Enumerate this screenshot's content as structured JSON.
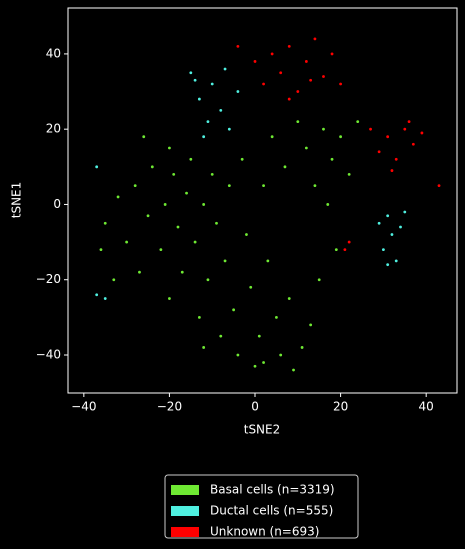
{
  "chart_data": {
    "type": "scatter",
    "x_label": "tSNE2",
    "y_label": "tSNE1",
    "xlim": [
      -43.7,
      47.2
    ],
    "ylim": [
      -50.1,
      52.2
    ],
    "xticks": [
      {
        "value": -40,
        "label": "−40"
      },
      {
        "value": -20,
        "label": "−20"
      },
      0,
      20,
      40
    ],
    "yticks": [
      {
        "value": -40,
        "label": "−40"
      },
      {
        "value": -20,
        "label": "−20"
      },
      0,
      20,
      40
    ],
    "legend": "below",
    "series": [
      {
        "name": "Basal cells (n=3319)",
        "color": "#6fe933",
        "x": [
          -35,
          -32,
          -30,
          -28,
          -27,
          -25,
          -24,
          -22,
          -21,
          -20,
          -19,
          -18,
          -17,
          -16,
          -15,
          -14,
          -13,
          -12,
          -11,
          -10,
          -9,
          -8,
          -7,
          -6,
          -5,
          -4,
          -3,
          -2,
          -1,
          0,
          1,
          2,
          3,
          4,
          5,
          6,
          7,
          8,
          9,
          10,
          11,
          12,
          13,
          14,
          15,
          16,
          17,
          18,
          19,
          20,
          22,
          24,
          -36,
          -33,
          -26,
          -20,
          -12,
          2
        ],
        "y": [
          -5,
          2,
          -10,
          5,
          -18,
          -3,
          10,
          -12,
          0,
          -25,
          8,
          -6,
          -18,
          3,
          12,
          -10,
          -30,
          0,
          -20,
          8,
          -5,
          -35,
          -15,
          5,
          -28,
          -40,
          12,
          -8,
          -22,
          -43,
          -35,
          5,
          -15,
          18,
          -30,
          -40,
          10,
          -25,
          -44,
          22,
          -38,
          15,
          -32,
          5,
          -20,
          20,
          0,
          12,
          -12,
          18,
          8,
          22,
          -12,
          -20,
          18,
          15,
          -38,
          -42
        ]
      },
      {
        "name": "Ductal cells (n=555)",
        "color": "#4ff0e0",
        "x": [
          -15,
          -13,
          -11,
          -10,
          -8,
          -7,
          -6,
          -12,
          -4,
          -14,
          29,
          30,
          31,
          32,
          33,
          34,
          31,
          35,
          -37,
          -35,
          -37
        ],
        "y": [
          35,
          28,
          22,
          32,
          25,
          36,
          20,
          18,
          30,
          33,
          -5,
          -12,
          -3,
          -8,
          -15,
          -6,
          -16,
          -2,
          -24,
          -25,
          10
        ]
      },
      {
        "name": "Unknown (n=693)",
        "color": "#ff0000",
        "x": [
          -4,
          0,
          2,
          4,
          6,
          8,
          10,
          12,
          14,
          16,
          18,
          20,
          8,
          13,
          27,
          29,
          31,
          33,
          35,
          37,
          39,
          32,
          36,
          21,
          22,
          43
        ],
        "y": [
          42,
          38,
          32,
          40,
          35,
          42,
          30,
          38,
          44,
          34,
          40,
          32,
          28,
          33,
          20,
          14,
          18,
          12,
          20,
          16,
          19,
          9,
          22,
          -12,
          -10,
          5
        ]
      }
    ]
  }
}
